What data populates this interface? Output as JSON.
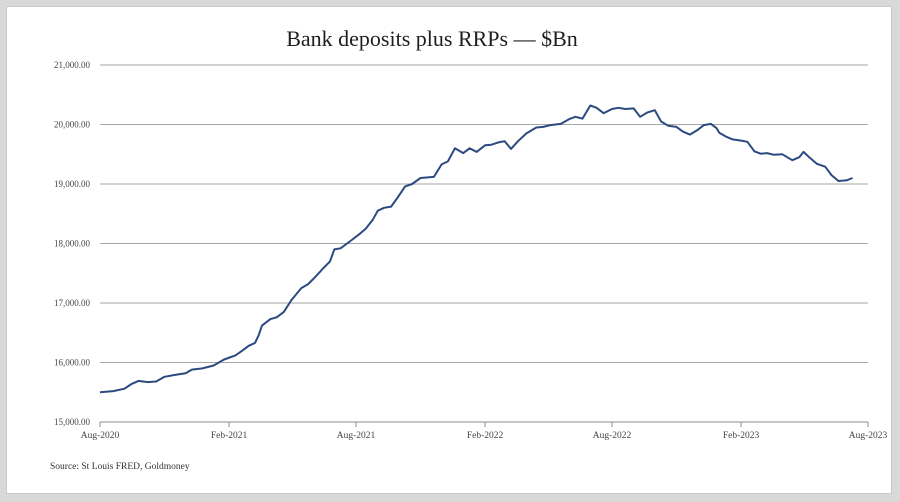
{
  "chart_data": {
    "type": "line",
    "title": "Bank deposits plus RRPs — $Bn",
    "source": "Source: St Louis FRED, Goldmoney",
    "xlabel": "",
    "ylabel": "",
    "ylim": [
      15000,
      21000
    ],
    "y_ticks": [
      {
        "value": 15000,
        "label": "15,000.00"
      },
      {
        "value": 16000,
        "label": "16,000.00"
      },
      {
        "value": 17000,
        "label": "17,000.00"
      },
      {
        "value": 18000,
        "label": "18,000.00"
      },
      {
        "value": 19000,
        "label": "19,000.00"
      },
      {
        "value": 20000,
        "label": "20,000.00"
      },
      {
        "value": 21000,
        "label": "21,000.00"
      }
    ],
    "x_ticks": [
      {
        "date": "2020-08",
        "label": "Aug-2020"
      },
      {
        "date": "2021-02",
        "label": "Feb-2021"
      },
      {
        "date": "2021-08",
        "label": "Aug-2021"
      },
      {
        "date": "2022-02",
        "label": "Feb-2022"
      },
      {
        "date": "2022-08",
        "label": "Aug-2022"
      },
      {
        "date": "2023-02",
        "label": "Feb-2023"
      },
      {
        "date": "2023-08",
        "label": "Aug-2023"
      }
    ],
    "grid": true,
    "line_color": "#2b4a80",
    "series": [
      {
        "name": "",
        "points": [
          [
            "2020-08-01",
            15500
          ],
          [
            "2020-08-20",
            15520
          ],
          [
            "2020-09-05",
            15560
          ],
          [
            "2020-09-15",
            15640
          ],
          [
            "2020-09-25",
            15690
          ],
          [
            "2020-10-08",
            15670
          ],
          [
            "2020-10-20",
            15680
          ],
          [
            "2020-11-01",
            15760
          ],
          [
            "2020-11-15",
            15790
          ],
          [
            "2020-12-01",
            15820
          ],
          [
            "2020-12-10",
            15880
          ],
          [
            "2020-12-25",
            15900
          ],
          [
            "2021-01-10",
            15950
          ],
          [
            "2021-01-25",
            16050
          ],
          [
            "2021-02-10",
            16120
          ],
          [
            "2021-02-20",
            16200
          ],
          [
            "2021-03-01",
            16280
          ],
          [
            "2021-03-10",
            16330
          ],
          [
            "2021-03-15",
            16450
          ],
          [
            "2021-03-20",
            16620
          ],
          [
            "2021-04-01",
            16730
          ],
          [
            "2021-04-10",
            16760
          ],
          [
            "2021-04-20",
            16850
          ],
          [
            "2021-05-01",
            17050
          ],
          [
            "2021-05-15",
            17250
          ],
          [
            "2021-05-25",
            17320
          ],
          [
            "2021-06-05",
            17450
          ],
          [
            "2021-06-15",
            17580
          ],
          [
            "2021-06-25",
            17700
          ],
          [
            "2021-07-01",
            17900
          ],
          [
            "2021-07-10",
            17920
          ],
          [
            "2021-07-25",
            18050
          ],
          [
            "2021-08-05",
            18150
          ],
          [
            "2021-08-15",
            18250
          ],
          [
            "2021-08-25",
            18400
          ],
          [
            "2021-09-01",
            18550
          ],
          [
            "2021-09-10",
            18600
          ],
          [
            "2021-09-20",
            18620
          ],
          [
            "2021-09-28",
            18750
          ],
          [
            "2021-10-10",
            18960
          ],
          [
            "2021-10-20",
            19000
          ],
          [
            "2021-11-01",
            19100
          ],
          [
            "2021-11-20",
            19120
          ],
          [
            "2021-12-01",
            19330
          ],
          [
            "2021-12-10",
            19380
          ],
          [
            "2021-12-20",
            19600
          ],
          [
            "2022-01-01",
            19520
          ],
          [
            "2022-01-10",
            19600
          ],
          [
            "2022-01-20",
            19540
          ],
          [
            "2022-02-01",
            19650
          ],
          [
            "2022-02-10",
            19660
          ],
          [
            "2022-02-20",
            19700
          ],
          [
            "2022-03-01",
            19720
          ],
          [
            "2022-03-10",
            19590
          ],
          [
            "2022-03-20",
            19720
          ],
          [
            "2022-04-01",
            19850
          ],
          [
            "2022-04-15",
            19950
          ],
          [
            "2022-04-25",
            19960
          ],
          [
            "2022-05-05",
            19990
          ],
          [
            "2022-05-20",
            20010
          ],
          [
            "2022-06-01",
            20090
          ],
          [
            "2022-06-10",
            20130
          ],
          [
            "2022-06-20",
            20100
          ],
          [
            "2022-07-01",
            20320
          ],
          [
            "2022-07-10",
            20280
          ],
          [
            "2022-07-20",
            20190
          ],
          [
            "2022-08-01",
            20260
          ],
          [
            "2022-08-10",
            20280
          ],
          [
            "2022-08-20",
            20260
          ],
          [
            "2022-09-01",
            20270
          ],
          [
            "2022-09-10",
            20130
          ],
          [
            "2022-09-20",
            20200
          ],
          [
            "2022-10-01",
            20240
          ],
          [
            "2022-10-10",
            20050
          ],
          [
            "2022-10-20",
            19980
          ],
          [
            "2022-11-01",
            19960
          ],
          [
            "2022-11-10",
            19880
          ],
          [
            "2022-11-20",
            19830
          ],
          [
            "2022-11-30",
            19900
          ],
          [
            "2022-12-10",
            19990
          ],
          [
            "2022-12-20",
            20010
          ],
          [
            "2022-12-28",
            19940
          ],
          [
            "2023-01-01",
            19860
          ],
          [
            "2023-01-10",
            19800
          ],
          [
            "2023-01-20",
            19750
          ],
          [
            "2023-02-01",
            19730
          ],
          [
            "2023-02-10",
            19710
          ],
          [
            "2023-02-20",
            19550
          ],
          [
            "2023-03-01",
            19510
          ],
          [
            "2023-03-10",
            19520
          ],
          [
            "2023-03-20",
            19490
          ],
          [
            "2023-04-01",
            19500
          ],
          [
            "2023-04-15",
            19400
          ],
          [
            "2023-04-25",
            19450
          ],
          [
            "2023-05-01",
            19540
          ],
          [
            "2023-05-10",
            19440
          ],
          [
            "2023-05-20",
            19340
          ],
          [
            "2023-06-01",
            19290
          ],
          [
            "2023-06-10",
            19150
          ],
          [
            "2023-06-20",
            19050
          ],
          [
            "2023-07-01",
            19060
          ],
          [
            "2023-07-10",
            19100
          ]
        ]
      }
    ]
  }
}
